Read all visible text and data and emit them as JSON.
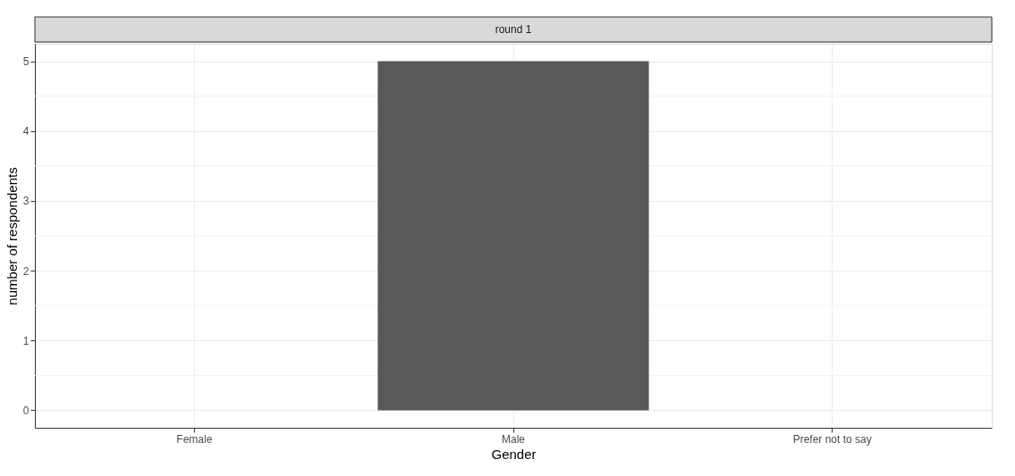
{
  "chart_data": {
    "type": "bar",
    "title": "round 1",
    "xlabel": "Gender",
    "ylabel": "number of respondents",
    "categories": [
      "Female",
      "Male",
      "Prefer not to say"
    ],
    "series": [
      {
        "color": "#595959",
        "values": [
          0,
          5,
          0
        ]
      }
    ],
    "ylim": [
      -0.25,
      5.25
    ],
    "yticks": [
      0,
      1,
      2,
      3,
      4,
      5
    ],
    "grid": true
  }
}
